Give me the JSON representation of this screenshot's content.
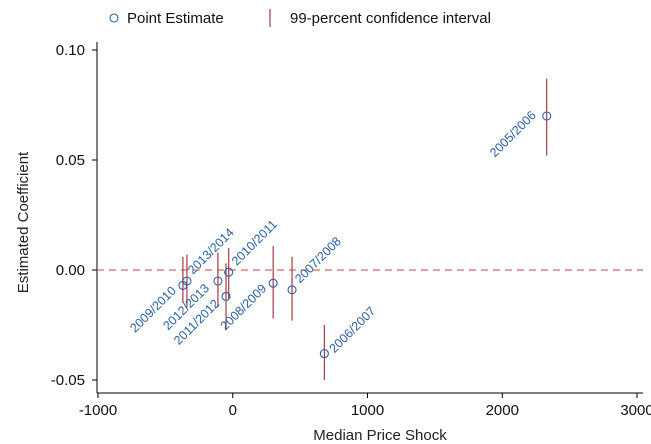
{
  "chart_data": {
    "type": "scatter",
    "title": "",
    "xlabel": "Median Price Shock",
    "ylabel": "Estimated Coefficient",
    "xlim": [
      -1000,
      3000
    ],
    "ylim": [
      -0.055,
      0.105
    ],
    "xticks": [
      -1000,
      0,
      1000,
      2000,
      3000
    ],
    "yticks": [
      -0.05,
      0.0,
      0.05,
      0.1
    ],
    "xtick_labels": [
      "-1000",
      "0",
      "1000",
      "2000",
      "3000"
    ],
    "ytick_labels": [
      "-0.05",
      "0.00",
      "0.05",
      "0.10"
    ],
    "reference_line_y": 0,
    "legend": {
      "placement": "top-left",
      "entries": [
        "Point Estimate",
        "99-percent confidence interval"
      ]
    },
    "colors": {
      "point": "#2b5fa3",
      "interval": "#a83a45",
      "label": "#2b5fa3",
      "reference": "#d46b6b",
      "axis": "#000000"
    },
    "points": [
      {
        "label": "2005/2006",
        "x": 2330,
        "y": 0.07,
        "ci_low": 0.052,
        "ci_high": 0.087
      },
      {
        "label": "2006/2007",
        "x": 680,
        "y": -0.038,
        "ci_low": -0.05,
        "ci_high": -0.025
      },
      {
        "label": "2007/2008",
        "x": 440,
        "y": -0.009,
        "ci_low": -0.023,
        "ci_high": 0.006
      },
      {
        "label": "2008/2009",
        "x": 300,
        "y": -0.006,
        "ci_low": -0.022,
        "ci_high": 0.011
      },
      {
        "label": "2009/2010",
        "x": -370,
        "y": -0.007,
        "ci_low": -0.015,
        "ci_high": 0.006
      },
      {
        "label": "2010/2011",
        "x": -30,
        "y": -0.001,
        "ci_low": -0.013,
        "ci_high": 0.01
      },
      {
        "label": "2011/2012",
        "x": -50,
        "y": -0.012,
        "ci_low": -0.027,
        "ci_high": 0.003
      },
      {
        "label": "2012/2013",
        "x": -110,
        "y": -0.005,
        "ci_low": -0.017,
        "ci_high": 0.008
      },
      {
        "label": "2013/2014",
        "x": -340,
        "y": -0.005,
        "ci_low": -0.017,
        "ci_high": 0.007
      }
    ]
  }
}
